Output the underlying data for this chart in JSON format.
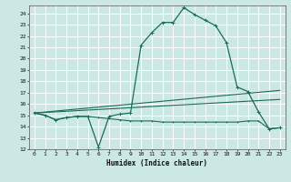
{
  "xlabel": "Humidex (Indice chaleur)",
  "bg_color": "#cce8e4",
  "grid_color": "#ffffff",
  "line_color": "#1a6b5a",
  "xlim": [
    -0.5,
    23.5
  ],
  "ylim": [
    12,
    24.7
  ],
  "yticks": [
    12,
    13,
    14,
    15,
    16,
    17,
    18,
    19,
    20,
    21,
    22,
    23,
    24
  ],
  "xticks": [
    0,
    1,
    2,
    3,
    4,
    5,
    6,
    7,
    8,
    9,
    10,
    11,
    12,
    13,
    14,
    15,
    16,
    17,
    18,
    19,
    20,
    21,
    22,
    23
  ],
  "line1_x": [
    0,
    1,
    2,
    3,
    4,
    5,
    6,
    7,
    8,
    9,
    10,
    11,
    12,
    13,
    14,
    15,
    16,
    17,
    18,
    19,
    20,
    21,
    22,
    23
  ],
  "line1_y": [
    15.2,
    15.0,
    14.6,
    14.8,
    14.9,
    14.9,
    12.2,
    14.9,
    15.1,
    15.2,
    21.2,
    22.3,
    23.2,
    23.2,
    24.5,
    23.9,
    23.4,
    22.9,
    21.4,
    17.5,
    17.1,
    15.3,
    13.8,
    13.9
  ],
  "line2_x": [
    0,
    1,
    2,
    3,
    4,
    5,
    6,
    7,
    8,
    9,
    10,
    11,
    12,
    13,
    14,
    15,
    16,
    17,
    18,
    19,
    20,
    21,
    22,
    23
  ],
  "line2_y": [
    15.2,
    15.0,
    14.6,
    14.8,
    14.9,
    14.9,
    14.8,
    14.7,
    14.6,
    14.5,
    14.5,
    14.5,
    14.4,
    14.4,
    14.4,
    14.4,
    14.4,
    14.4,
    14.4,
    14.4,
    14.5,
    14.5,
    13.8,
    13.9
  ],
  "line3_x": [
    0,
    23
  ],
  "line3_y": [
    15.2,
    17.2
  ],
  "line4_x": [
    0,
    23
  ],
  "line4_y": [
    15.2,
    16.4
  ]
}
